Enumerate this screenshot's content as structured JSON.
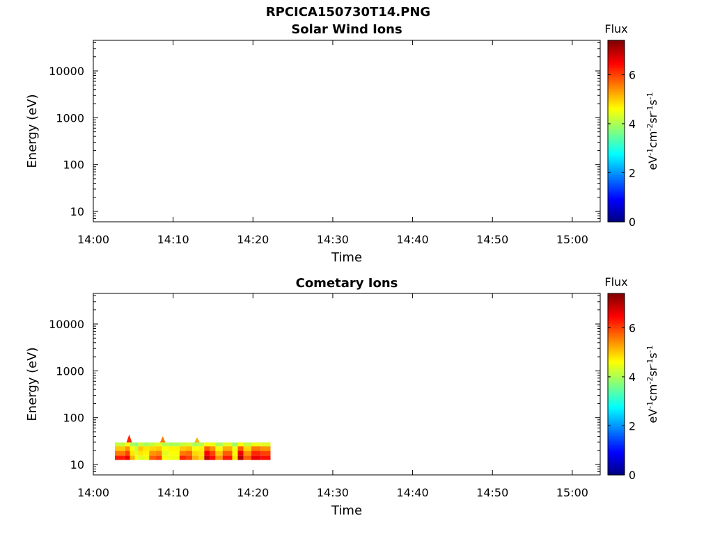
{
  "figure": {
    "title": "RPCICA150730T14.PNG"
  },
  "colors": {
    "axes": "#000000",
    "background": "#ffffff",
    "colormap": "jet"
  },
  "chart_data": [
    {
      "type": "heatmap",
      "title": "Solar Wind Ions",
      "xlabel": "Time",
      "ylabel": "Energy (eV)",
      "x_ticks": [
        "14:00",
        "14:10",
        "14:20",
        "14:30",
        "14:40",
        "14:50",
        "15:00"
      ],
      "x_range_minutes": [
        0,
        63.5
      ],
      "y_scale": "log",
      "y_ticks": [
        "10",
        "100",
        "1000",
        "10000"
      ],
      "y_range": [
        6,
        45000
      ],
      "colorbar": {
        "label_top": "Flux",
        "label_side": "eV-1cm-2sr-1s-1",
        "range": [
          0,
          7.4
        ],
        "ticks": [
          "0",
          "2",
          "4",
          "6"
        ]
      },
      "segments": []
    },
    {
      "type": "heatmap",
      "title": "Cometary Ions",
      "xlabel": "Time",
      "ylabel": "Energy (eV)",
      "x_ticks": [
        "14:00",
        "14:10",
        "14:20",
        "14:30",
        "14:40",
        "14:50",
        "15:00"
      ],
      "x_range_minutes": [
        0,
        63.5
      ],
      "y_scale": "log",
      "y_ticks": [
        "10",
        "100",
        "1000",
        "10000"
      ],
      "y_range": [
        6,
        45000
      ],
      "colorbar": {
        "label_top": "Flux",
        "label_side": "eV-1cm-2sr-1s-1",
        "range": [
          0,
          7.4
        ],
        "ticks": [
          "0",
          "2",
          "4",
          "6"
        ]
      },
      "segments": [
        {
          "t0": 2.7,
          "t1": 4.0,
          "fluxes": [
            6.3,
            5.6,
            5.0,
            4.2
          ]
        },
        {
          "t0": 4.0,
          "t1": 4.6,
          "fluxes": [
            6.6,
            6.0,
            5.4,
            4.6
          ]
        },
        {
          "t0": 4.6,
          "t1": 5.2,
          "fluxes": [
            5.2,
            4.8,
            4.6,
            4.0
          ]
        },
        {
          "t0": 5.2,
          "t1": 5.6,
          "fluxes": [
            4.6,
            4.4,
            4.2,
            3.8
          ]
        },
        {
          "t0": 5.6,
          "t1": 6.3,
          "fluxes": [
            4.4,
            4.8,
            5.0,
            4.2
          ]
        },
        {
          "t0": 6.3,
          "t1": 7.0,
          "fluxes": [
            4.5,
            4.7,
            4.8,
            4.0
          ]
        },
        {
          "t0": 7.0,
          "t1": 7.8,
          "fluxes": [
            5.8,
            5.4,
            4.9,
            4.2
          ]
        },
        {
          "t0": 7.8,
          "t1": 8.6,
          "fluxes": [
            6.0,
            5.5,
            5.0,
            4.4
          ]
        },
        {
          "t0": 8.6,
          "t1": 9.4,
          "fluxes": [
            4.6,
            4.4,
            4.6,
            4.1
          ]
        },
        {
          "t0": 9.4,
          "t1": 10.8,
          "fluxes": [
            4.5,
            4.6,
            4.7,
            4.0
          ]
        },
        {
          "t0": 10.8,
          "t1": 11.6,
          "fluxes": [
            6.2,
            5.6,
            5.0,
            4.2
          ]
        },
        {
          "t0": 11.6,
          "t1": 12.4,
          "fluxes": [
            6.0,
            5.7,
            5.1,
            4.3
          ]
        },
        {
          "t0": 12.4,
          "t1": 13.2,
          "fluxes": [
            5.2,
            4.9,
            4.6,
            4.0
          ]
        },
        {
          "t0": 13.2,
          "t1": 13.9,
          "fluxes": [
            4.9,
            4.8,
            4.7,
            4.1
          ]
        },
        {
          "t0": 13.9,
          "t1": 14.6,
          "fluxes": [
            6.9,
            6.5,
            5.8,
            4.6
          ]
        },
        {
          "t0": 14.6,
          "t1": 15.3,
          "fluxes": [
            6.4,
            6.0,
            5.4,
            4.5
          ]
        },
        {
          "t0": 15.3,
          "t1": 16.2,
          "fluxes": [
            5.4,
            5.0,
            4.6,
            4.0
          ]
        },
        {
          "t0": 16.2,
          "t1": 17.4,
          "fluxes": [
            6.3,
            5.8,
            5.2,
            4.4
          ]
        },
        {
          "t0": 17.4,
          "t1": 18.1,
          "fluxes": [
            4.8,
            4.6,
            4.5,
            3.9
          ]
        },
        {
          "t0": 18.1,
          "t1": 18.8,
          "fluxes": [
            7.0,
            6.6,
            5.8,
            4.6
          ]
        },
        {
          "t0": 18.8,
          "t1": 19.8,
          "fluxes": [
            5.8,
            5.4,
            4.9,
            4.2
          ]
        },
        {
          "t0": 19.8,
          "t1": 21.0,
          "fluxes": [
            6.6,
            6.2,
            5.6,
            4.5
          ]
        },
        {
          "t0": 21.0,
          "t1": 22.2,
          "fluxes": [
            6.4,
            6.0,
            5.4,
            4.4
          ]
        }
      ],
      "spikes": [
        {
          "t": 4.5,
          "emax": 44,
          "flux": 6.2
        },
        {
          "t": 8.7,
          "emax": 40,
          "flux": 5.6
        },
        {
          "t": 13.0,
          "emax": 38,
          "flux": 5.2
        }
      ]
    }
  ]
}
